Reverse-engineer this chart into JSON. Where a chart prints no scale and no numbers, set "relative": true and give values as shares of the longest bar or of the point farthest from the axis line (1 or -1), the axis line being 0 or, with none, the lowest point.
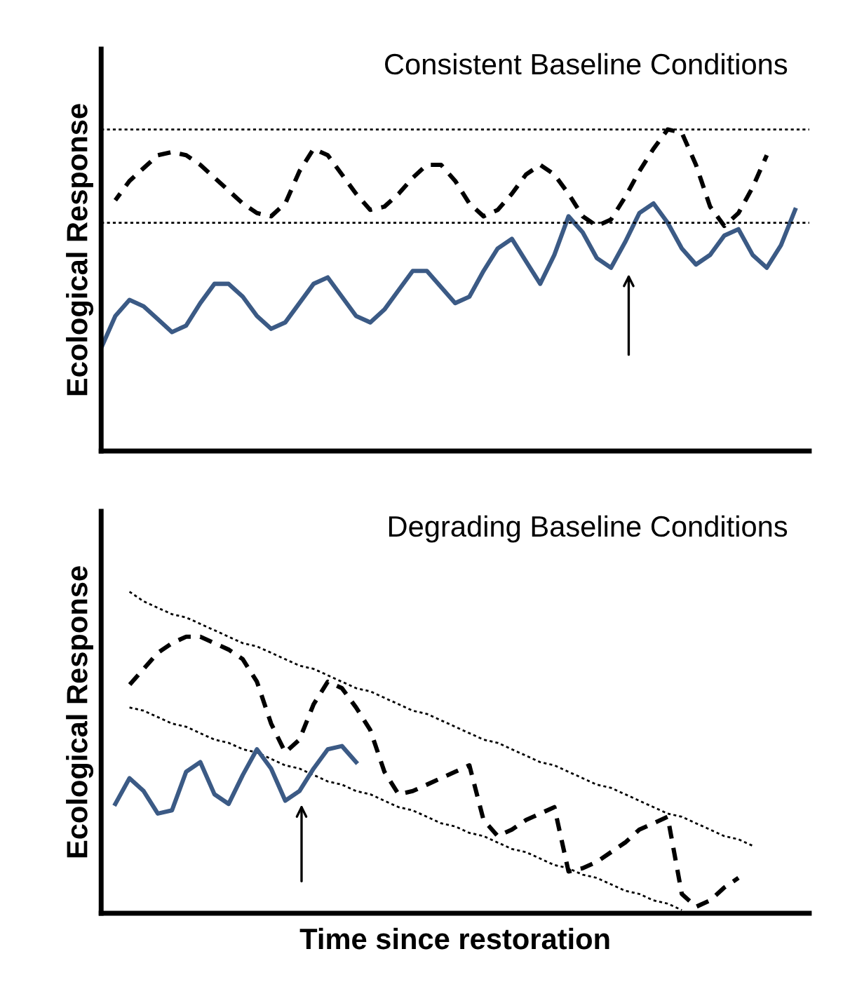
{
  "chart_data": [
    {
      "type": "line",
      "title": "Consistent Baseline Conditions",
      "ylabel": "Ecological Response",
      "relative": true,
      "categories": [
        null,
        null,
        null,
        null,
        null,
        null,
        null,
        null,
        null,
        null,
        null,
        null,
        null,
        null,
        null,
        null,
        null,
        null,
        null,
        null,
        null,
        null,
        null,
        null,
        null,
        null,
        null,
        null,
        null,
        null,
        null,
        null,
        null,
        null,
        null,
        null,
        null,
        null,
        null,
        null,
        null,
        null,
        null,
        null,
        null,
        null,
        null,
        null,
        null,
        null,
        null
      ],
      "ref_lines": [
        {
          "axis": "y",
          "value": 1.0,
          "color": "#000000",
          "line_style": "dotted"
        },
        {
          "axis": "y",
          "value": 0.71,
          "color": "#000000",
          "line_style": "dotted"
        }
      ],
      "series": [
        {
          "color": "#000000",
          "line_style": "dashed",
          "values": [
            null,
            0.78,
            0.84,
            0.88,
            0.92,
            0.93,
            0.92,
            0.89,
            0.85,
            0.81,
            0.77,
            0.74,
            0.73,
            0.77,
            0.87,
            0.94,
            0.92,
            0.86,
            0.8,
            0.75,
            0.76,
            0.8,
            0.85,
            0.89,
            0.89,
            0.84,
            0.77,
            0.73,
            0.75,
            0.8,
            0.86,
            0.89,
            0.86,
            0.8,
            0.73,
            0.7,
            0.72,
            0.79,
            0.87,
            0.94,
            1.0,
            0.99,
            0.89,
            0.76,
            0.7,
            0.74,
            0.82,
            0.92,
            null,
            null,
            null
          ]
        },
        {
          "color": "#3b5a85",
          "line_style": "solid",
          "values": [
            0.32,
            0.42,
            0.47,
            0.45,
            0.41,
            0.37,
            0.39,
            0.46,
            0.52,
            0.52,
            0.48,
            0.42,
            0.38,
            0.4,
            0.46,
            0.52,
            0.54,
            0.48,
            0.42,
            0.4,
            0.44,
            0.5,
            0.56,
            0.56,
            0.51,
            0.46,
            0.48,
            0.56,
            0.63,
            0.66,
            0.59,
            0.52,
            0.61,
            0.73,
            0.68,
            0.6,
            0.57,
            0.65,
            0.74,
            0.77,
            0.71,
            0.63,
            0.58,
            0.61,
            0.67,
            0.69,
            0.61,
            0.57,
            0.64,
            0.75,
            null
          ]
        }
      ]
    },
    {
      "type": "line",
      "title": "Degrading Baseline Conditions",
      "ylabel": "Ecological Response",
      "xlabel": "Time since restoration",
      "relative": true,
      "categories": [
        null,
        null,
        null,
        null,
        null,
        null,
        null,
        null,
        null,
        null,
        null,
        null,
        null,
        null,
        null,
        null,
        null,
        null,
        null,
        null,
        null,
        null,
        null,
        null,
        null,
        null,
        null,
        null,
        null,
        null,
        null,
        null,
        null,
        null,
        null,
        null,
        null,
        null,
        null,
        null,
        null,
        null,
        null,
        null,
        null,
        null,
        null,
        null,
        null,
        null,
        null
      ],
      "series": [
        {
          "color": "#000000",
          "line_style": "dotted",
          "values": [
            null,
            null,
            1.0,
            0.97,
            0.95,
            0.93,
            0.92,
            0.9,
            0.88,
            0.86,
            0.84,
            0.83,
            0.81,
            0.79,
            0.77,
            0.76,
            0.74,
            0.72,
            0.7,
            0.69,
            0.67,
            0.65,
            0.63,
            0.62,
            0.6,
            0.58,
            0.56,
            0.54,
            0.53,
            0.51,
            0.49,
            0.47,
            0.46,
            0.44,
            0.42,
            0.4,
            0.39,
            0.37,
            0.35,
            0.33,
            0.31,
            0.3,
            0.28,
            0.26,
            0.24,
            0.23,
            0.21,
            null,
            null,
            null,
            null
          ]
        },
        {
          "color": "#000000",
          "line_style": "dotted",
          "values": [
            null,
            null,
            0.64,
            0.63,
            0.61,
            0.59,
            0.58,
            0.56,
            0.54,
            0.53,
            0.51,
            0.5,
            0.48,
            0.46,
            0.45,
            0.43,
            0.41,
            0.4,
            0.38,
            0.37,
            0.35,
            0.33,
            0.32,
            0.3,
            0.28,
            0.27,
            0.25,
            0.24,
            0.22,
            0.2,
            0.19,
            0.17,
            0.15,
            0.14,
            0.12,
            0.11,
            0.09,
            0.07,
            0.06,
            0.04,
            0.03,
            0.01,
            null,
            null,
            null,
            null,
            null,
            null,
            null,
            null,
            null
          ]
        },
        {
          "color": "#000000",
          "line_style": "dashed",
          "values": [
            null,
            null,
            0.71,
            0.76,
            0.81,
            0.84,
            0.86,
            0.86,
            0.84,
            0.82,
            0.79,
            0.72,
            0.59,
            0.5,
            0.54,
            0.65,
            0.72,
            0.7,
            0.64,
            0.57,
            0.44,
            0.37,
            0.38,
            0.4,
            0.42,
            0.44,
            0.46,
            0.29,
            0.24,
            0.26,
            0.29,
            0.31,
            0.33,
            0.13,
            0.14,
            0.16,
            0.19,
            0.22,
            0.26,
            0.28,
            0.3,
            0.06,
            0.02,
            0.04,
            0.08,
            0.11,
            null,
            null,
            null,
            null,
            null
          ]
        },
        {
          "color": "#3b5a85",
          "line_style": "solid",
          "values": [
            null,
            0.34,
            0.42,
            0.38,
            0.31,
            0.32,
            0.44,
            0.47,
            0.37,
            0.34,
            0.43,
            0.51,
            0.45,
            0.35,
            0.38,
            0.45,
            0.51,
            0.52,
            0.47,
            null,
            null,
            null,
            null,
            null,
            null,
            null,
            null,
            null,
            null,
            null,
            null,
            null,
            null,
            null,
            null,
            null,
            null,
            null,
            null,
            null,
            null,
            null,
            null,
            null,
            null,
            null,
            null,
            null,
            null,
            null,
            null
          ]
        }
      ]
    }
  ]
}
